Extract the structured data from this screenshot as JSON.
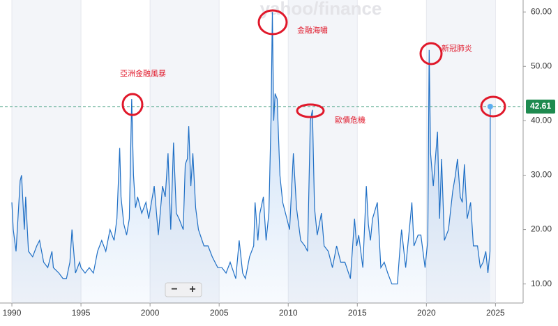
{
  "chart_data": {
    "type": "line",
    "watermark": "yahoo/finance",
    "annotations": [
      "亞洲金融風暴",
      "金融海嘯",
      "歐債危機",
      "新冠肺炎"
    ],
    "zoom_buttons": [
      "−",
      "+"
    ],
    "x": [
      1990.0,
      1990.1,
      1990.3,
      1990.6,
      1990.7,
      1990.8,
      1990.9,
      1991.0,
      1991.2,
      1991.5,
      1991.8,
      1992.0,
      1992.3,
      1992.6,
      1992.9,
      1993.0,
      1993.4,
      1993.7,
      1993.95,
      1994.2,
      1994.35,
      1994.6,
      1994.9,
      1995.0,
      1995.3,
      1995.6,
      1995.9,
      1996.2,
      1996.5,
      1996.8,
      1997.1,
      1997.4,
      1997.6,
      1997.8,
      1997.9,
      1998.1,
      1998.3,
      1998.5,
      1998.67,
      1998.8,
      1998.95,
      1999.1,
      1999.4,
      1999.7,
      1999.9,
      2000.1,
      2000.3,
      2000.6,
      2000.9,
      2001.1,
      2001.3,
      2001.5,
      2001.7,
      2001.9,
      2002.1,
      2002.4,
      2002.55,
      2002.7,
      2002.8,
      2002.95,
      2003.1,
      2003.3,
      2003.5,
      2003.9,
      2004.2,
      2004.5,
      2004.9,
      2005.2,
      2005.5,
      2005.8,
      2006.2,
      2006.45,
      2006.7,
      2006.9,
      2007.2,
      2007.5,
      2007.6,
      2007.8,
      2007.95,
      2008.2,
      2008.4,
      2008.6,
      2008.75,
      2008.85,
      2008.95,
      2009.05,
      2009.2,
      2009.4,
      2009.6,
      2009.9,
      2010.1,
      2010.37,
      2010.6,
      2010.9,
      2011.2,
      2011.4,
      2011.6,
      2011.75,
      2011.9,
      2012.1,
      2012.4,
      2012.6,
      2012.9,
      2013.2,
      2013.5,
      2013.8,
      2014.1,
      2014.5,
      2014.8,
      2014.95,
      2015.1,
      2015.4,
      2015.65,
      2015.8,
      2015.95,
      2016.1,
      2016.45,
      2016.7,
      2016.95,
      2017.2,
      2017.5,
      2017.9,
      2018.1,
      2018.2,
      2018.5,
      2018.8,
      2018.95,
      2019.1,
      2019.4,
      2019.6,
      2019.9,
      2020.1,
      2020.2,
      2020.3,
      2020.5,
      2020.8,
      2020.95,
      2021.1,
      2021.3,
      2021.6,
      2021.9,
      2022.1,
      2022.25,
      2022.45,
      2022.6,
      2022.75,
      2022.95,
      2023.2,
      2023.4,
      2023.7,
      2023.9,
      2024.1,
      2024.3,
      2024.45,
      2024.6,
      2024.62
    ],
    "series": [
      {
        "color": "#1f6fc5",
        "values": [
          25,
          20,
          16,
          29,
          30,
          25,
          20,
          26,
          16,
          15,
          17,
          18,
          14,
          13,
          16,
          13,
          12,
          11,
          11,
          14,
          20,
          12,
          14,
          13,
          12,
          13,
          12,
          16,
          18,
          16,
          20,
          18,
          22,
          35,
          26,
          21,
          19,
          22,
          44,
          30,
          24,
          26,
          23,
          25,
          22,
          25,
          28,
          19,
          28,
          26,
          34,
          20,
          36,
          23,
          22,
          20,
          32,
          33,
          39,
          28,
          34,
          24,
          20,
          17,
          17,
          15,
          13,
          13,
          12,
          14,
          11,
          18,
          12,
          11,
          15,
          17,
          25,
          18,
          23,
          26,
          18,
          23,
          40,
          60,
          40,
          45,
          44,
          30,
          25,
          22,
          20,
          34,
          24,
          18,
          17,
          16,
          40,
          42,
          24,
          19,
          23,
          17,
          16,
          13,
          17,
          14,
          14,
          11,
          22,
          17,
          19,
          13,
          28,
          21,
          18,
          22,
          25,
          13,
          14,
          12,
          10,
          10,
          17,
          20,
          13,
          21,
          25,
          17,
          19,
          19,
          13,
          18,
          53,
          34,
          28,
          38,
          22,
          33,
          18,
          20,
          27,
          30,
          33,
          26,
          25,
          32,
          22,
          25,
          17,
          17,
          13,
          14,
          16,
          12,
          16,
          42.61
        ]
      }
    ],
    "xlim": [
      1989.14,
      2027
    ],
    "xticks": [
      1990,
      1995,
      2000,
      2005,
      2010,
      2015,
      2020,
      2025
    ],
    "ylim": [
      6.5,
      62.2
    ],
    "yticks": [
      {
        "value": 10,
        "label": "10.00"
      },
      {
        "value": 20,
        "label": "20.00"
      },
      {
        "value": 30,
        "label": "30.00"
      },
      {
        "value": 40,
        "label": "40.00"
      },
      {
        "value": 50,
        "label": "50.00"
      },
      {
        "value": 60,
        "label": "60.00"
      }
    ],
    "grid": true
  }
}
